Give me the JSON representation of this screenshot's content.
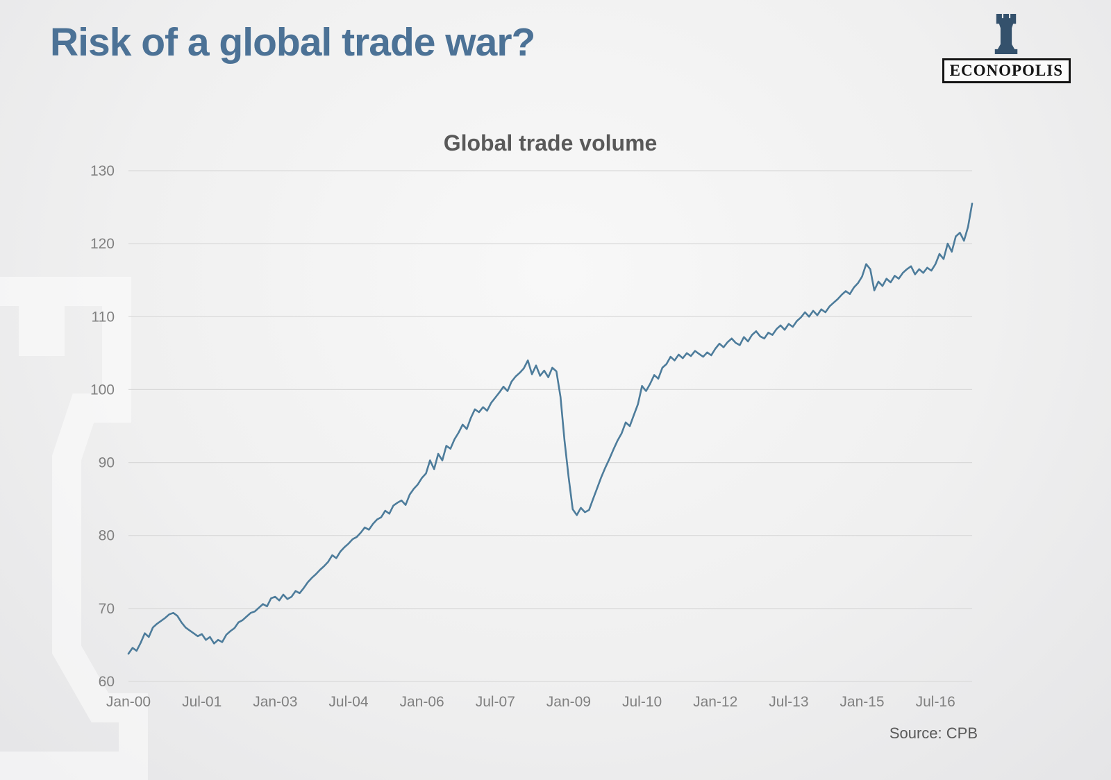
{
  "page": {
    "title": "Risk of a global trade war?",
    "source": "Source: CPB"
  },
  "logo": {
    "text": "ECONOPOLIS",
    "rook_color": "#34516c"
  },
  "chart_data": {
    "type": "line",
    "title": "Global trade volume",
    "frequency": "monthly",
    "x_start_month": "Jan-00",
    "x_end_month": "Apr-17",
    "x_tick_labels": [
      "Jan-00",
      "Jul-01",
      "Jan-03",
      "Jul-04",
      "Jan-06",
      "Jul-07",
      "Jan-09",
      "Jul-10",
      "Jan-12",
      "Jul-13",
      "Jan-15",
      "Jul-16"
    ],
    "x_tick_interval_months": 18,
    "ylim": [
      60,
      130
    ],
    "y_ticks": [
      60,
      70,
      80,
      90,
      100,
      110,
      120,
      130
    ],
    "grid": true,
    "legend": "none",
    "line_color": "#4d7c9b",
    "grid_color": "#d9d9d9",
    "values": [
      63.8,
      64.6,
      64.2,
      65.3,
      66.6,
      66.1,
      67.4,
      67.9,
      68.3,
      68.7,
      69.2,
      69.4,
      69.0,
      68.1,
      67.4,
      67.0,
      66.6,
      66.2,
      66.5,
      65.7,
      66.1,
      65.2,
      65.7,
      65.4,
      66.4,
      66.9,
      67.3,
      68.1,
      68.4,
      68.9,
      69.4,
      69.6,
      70.1,
      70.6,
      70.3,
      71.4,
      71.6,
      71.1,
      71.9,
      71.3,
      71.6,
      72.4,
      72.1,
      72.8,
      73.6,
      74.2,
      74.7,
      75.3,
      75.8,
      76.4,
      77.3,
      76.9,
      77.8,
      78.4,
      78.9,
      79.5,
      79.8,
      80.4,
      81.1,
      80.8,
      81.6,
      82.2,
      82.5,
      83.4,
      83.0,
      84.1,
      84.5,
      84.8,
      84.2,
      85.6,
      86.4,
      87.0,
      87.9,
      88.5,
      90.3,
      89.1,
      91.2,
      90.3,
      92.3,
      91.9,
      93.2,
      94.1,
      95.2,
      94.6,
      96.1,
      97.3,
      96.9,
      97.6,
      97.1,
      98.2,
      98.9,
      99.6,
      100.4,
      99.8,
      101.1,
      101.8,
      102.3,
      102.9,
      104.0,
      102.1,
      103.3,
      101.9,
      102.6,
      101.7,
      103.0,
      102.5,
      99.0,
      93.0,
      88.0,
      83.6,
      82.8,
      83.8,
      83.2,
      83.5,
      85.0,
      86.5,
      88.0,
      89.3,
      90.5,
      91.8,
      93.0,
      94.0,
      95.5,
      95.0,
      96.5,
      98.0,
      100.5,
      99.8,
      100.8,
      102.0,
      101.5,
      103.0,
      103.5,
      104.5,
      104.0,
      104.8,
      104.3,
      105.0,
      104.6,
      105.3,
      104.9,
      104.5,
      105.1,
      104.7,
      105.6,
      106.3,
      105.8,
      106.5,
      107.0,
      106.4,
      106.1,
      107.2,
      106.6,
      107.5,
      108.0,
      107.3,
      107.0,
      107.8,
      107.5,
      108.3,
      108.8,
      108.2,
      109.0,
      108.6,
      109.4,
      109.9,
      110.6,
      110.0,
      110.8,
      110.2,
      111.0,
      110.6,
      111.4,
      111.9,
      112.4,
      113.0,
      113.5,
      113.1,
      114.0,
      114.6,
      115.5,
      117.2,
      116.5,
      113.6,
      114.8,
      114.2,
      115.2,
      114.7,
      115.6,
      115.2,
      116.0,
      116.5,
      116.9,
      115.8,
      116.5,
      116.0,
      116.7,
      116.3,
      117.2,
      118.6,
      117.9,
      120.0,
      118.9,
      121.0,
      121.5,
      120.4,
      122.3,
      125.5
    ]
  }
}
